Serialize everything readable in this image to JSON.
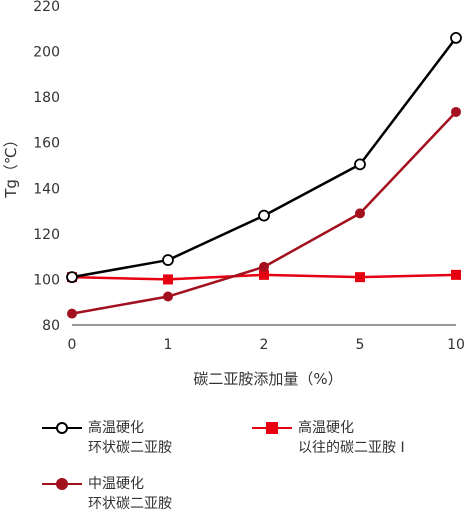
{
  "chart_data": {
    "type": "line",
    "categories": [
      "0",
      "1",
      "2",
      "5",
      "10"
    ],
    "xlabel": "碳二亚胺添加量（%）",
    "ylabel": "Tg（℃）",
    "ylim": [
      80,
      220
    ],
    "yticks": [
      80,
      100,
      120,
      140,
      160,
      180,
      200,
      220
    ],
    "grid": false,
    "legend_position": "bottom",
    "series": [
      {
        "name_lines": [
          "高温硬化",
          "环状碳二亚胺"
        ],
        "values": [
          101,
          108.5,
          128,
          150.5,
          206
        ],
        "color": "#000000",
        "marker": "circle-open"
      },
      {
        "name_lines": [
          "高温硬化",
          "以往的碳二亚胺 I"
        ],
        "values": [
          101,
          100,
          102,
          101,
          102
        ],
        "color": "#e60012",
        "marker": "square"
      },
      {
        "name_lines": [
          "中温硬化",
          "环状碳二亚胺"
        ],
        "values": [
          85,
          92.5,
          105.5,
          129,
          173.5
        ],
        "color": "#a3101e",
        "marker": "circle"
      }
    ]
  }
}
